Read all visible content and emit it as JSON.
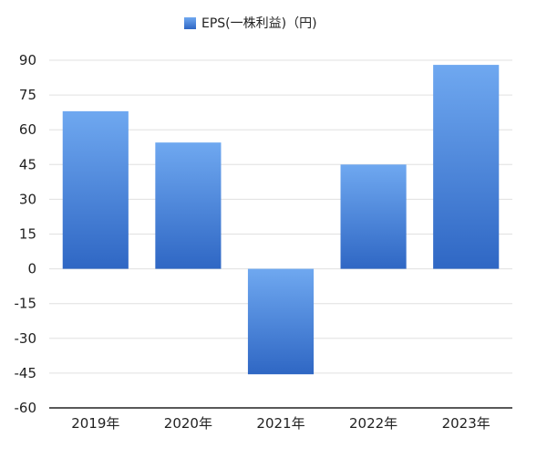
{
  "chart_data": {
    "type": "bar",
    "title": "",
    "xlabel": "",
    "ylabel": "",
    "categories": [
      "2019年",
      "2020年",
      "2021年",
      "2022年",
      "2023年"
    ],
    "series": [
      {
        "name": "EPS(一株利益)（円)",
        "values": [
          68,
          54.5,
          -45.5,
          45,
          88
        ]
      }
    ],
    "ylim": [
      -60,
      90
    ],
    "yticks": [
      90,
      75,
      60,
      45,
      30,
      15,
      0,
      -15,
      -30,
      -45,
      -60
    ],
    "grid": true,
    "legend": "top-center",
    "colors": {
      "bar_top": "#6fa8f0",
      "bar_bottom": "#2f67c4",
      "grid": "#e0e0e0",
      "axis": "#222222"
    }
  }
}
